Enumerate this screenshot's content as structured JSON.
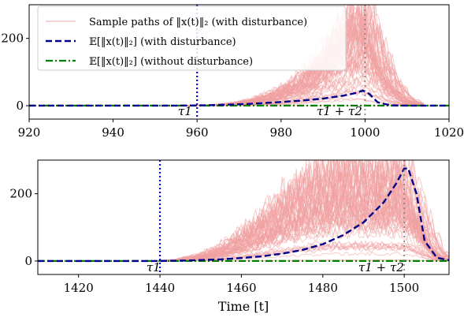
{
  "chart_data": [
    {
      "type": "line",
      "xlim": [
        920,
        1020
      ],
      "ylim": [
        -40,
        300
      ],
      "xticks": [
        920,
        940,
        960,
        980,
        1000,
        1020
      ],
      "xtick_labels": [
        "920",
        "940",
        "960",
        "980",
        "1000",
        "1020"
      ],
      "yticks": [
        0,
        200
      ],
      "ytick_labels": [
        "0",
        "200"
      ],
      "xlabel": "",
      "ylabel": "",
      "grid": false,
      "legend_position": "top-left",
      "vlines": [
        {
          "x": 960,
          "style": "dotted",
          "color": "#0000cc",
          "label": "τ1"
        },
        {
          "x": 1000,
          "style": "dotted",
          "color": "#888888",
          "label": "τ1 + τ2"
        }
      ],
      "series": [
        {
          "name": "Sample paths of ‖x(t)‖2 (with disturbance)",
          "color": "#f0a0a0",
          "style": "band",
          "x": [
            955,
            960,
            965,
            970,
            975,
            980,
            985,
            990,
            995,
            998,
            1000,
            1003,
            1006,
            1010,
            1014
          ],
          "y_min": [
            0,
            0,
            0,
            0,
            0,
            0,
            0,
            0,
            0,
            0,
            0,
            0,
            0,
            0,
            0
          ],
          "y_max": [
            0,
            0,
            3,
            10,
            25,
            50,
            90,
            160,
            260,
            300,
            300,
            200,
            90,
            20,
            0
          ]
        },
        {
          "name": "𝔼[‖x(t)‖2] (with disturbance)",
          "color": "#00008b",
          "style": "dashed",
          "x": [
            920,
            955,
            960,
            965,
            970,
            975,
            980,
            985,
            990,
            995,
            998,
            999.5,
            1001,
            1003,
            1006,
            1010,
            1020
          ],
          "y": [
            0,
            0,
            0.5,
            2,
            4,
            7,
            11,
            15,
            21,
            30,
            38,
            45,
            35,
            10,
            1,
            0,
            0
          ]
        },
        {
          "name": "𝔼[‖x(t)‖2] (without disturbance)",
          "color": "#008000",
          "style": "dashdot",
          "x": [
            920,
            1020
          ],
          "y": [
            0,
            0
          ]
        }
      ]
    },
    {
      "type": "line",
      "xlim": [
        1410,
        1511
      ],
      "ylim": [
        -40,
        300
      ],
      "xticks": [
        1420,
        1440,
        1460,
        1480,
        1500
      ],
      "xtick_labels": [
        "1420",
        "1440",
        "1460",
        "1480",
        "1500"
      ],
      "yticks": [
        0,
        200
      ],
      "ytick_labels": [
        "0",
        "200"
      ],
      "xlabel": "Time [t]",
      "ylabel": "",
      "grid": false,
      "vlines": [
        {
          "x": 1440,
          "style": "dotted",
          "color": "#0000cc",
          "label": "τ1"
        },
        {
          "x": 1500,
          "style": "dotted",
          "color": "#888888",
          "label": "τ1 + τ2"
        }
      ],
      "series": [
        {
          "name": "Sample paths of ‖x(t)‖2 (with disturbance)",
          "color": "#f0a0a0",
          "style": "band",
          "x": [
            1440,
            1445,
            1450,
            1455,
            1460,
            1465,
            1470,
            1475,
            1480,
            1483,
            1486,
            1490,
            1495,
            1500,
            1504,
            1508,
            1511
          ],
          "y_min": [
            0,
            0,
            0,
            0,
            0,
            0,
            0,
            0,
            0,
            0,
            0,
            0,
            0,
            0,
            0,
            0,
            0
          ],
          "y_max": [
            0,
            5,
            20,
            45,
            85,
            140,
            200,
            250,
            290,
            300,
            300,
            300,
            300,
            300,
            150,
            30,
            5
          ]
        },
        {
          "name": "𝔼[‖x(t)‖2] (with disturbance)",
          "color": "#00008b",
          "style": "dashed",
          "x": [
            1410,
            1440,
            1445,
            1450,
            1455,
            1460,
            1465,
            1470,
            1475,
            1480,
            1485,
            1490,
            1495,
            1498,
            1500,
            1501,
            1503,
            1505,
            1508,
            1511
          ],
          "y": [
            0,
            0,
            1,
            3,
            5,
            9,
            14,
            22,
            33,
            50,
            77,
            115,
            175,
            230,
            275,
            275,
            200,
            60,
            10,
            2
          ]
        },
        {
          "name": "𝔼[‖x(t)‖2] (without disturbance)",
          "color": "#008000",
          "style": "dashdot",
          "x": [
            1410,
            1511
          ],
          "y": [
            0,
            0
          ]
        }
      ]
    }
  ],
  "top": {
    "tau1_label": "τ1",
    "tau12_label": "τ1 + τ2",
    "legend": {
      "sample": "Sample paths of ‖x(t)‖₂ (with disturbance)",
      "mean_dist": "𝔼[‖x(t)‖₂] (with disturbance)",
      "mean_nodist": "𝔼[‖x(t)‖₂] (without disturbance)"
    }
  },
  "bottom": {
    "tau1_label": "τ1",
    "tau12_label": "τ1 + τ2",
    "xlabel": "Time [t]"
  }
}
